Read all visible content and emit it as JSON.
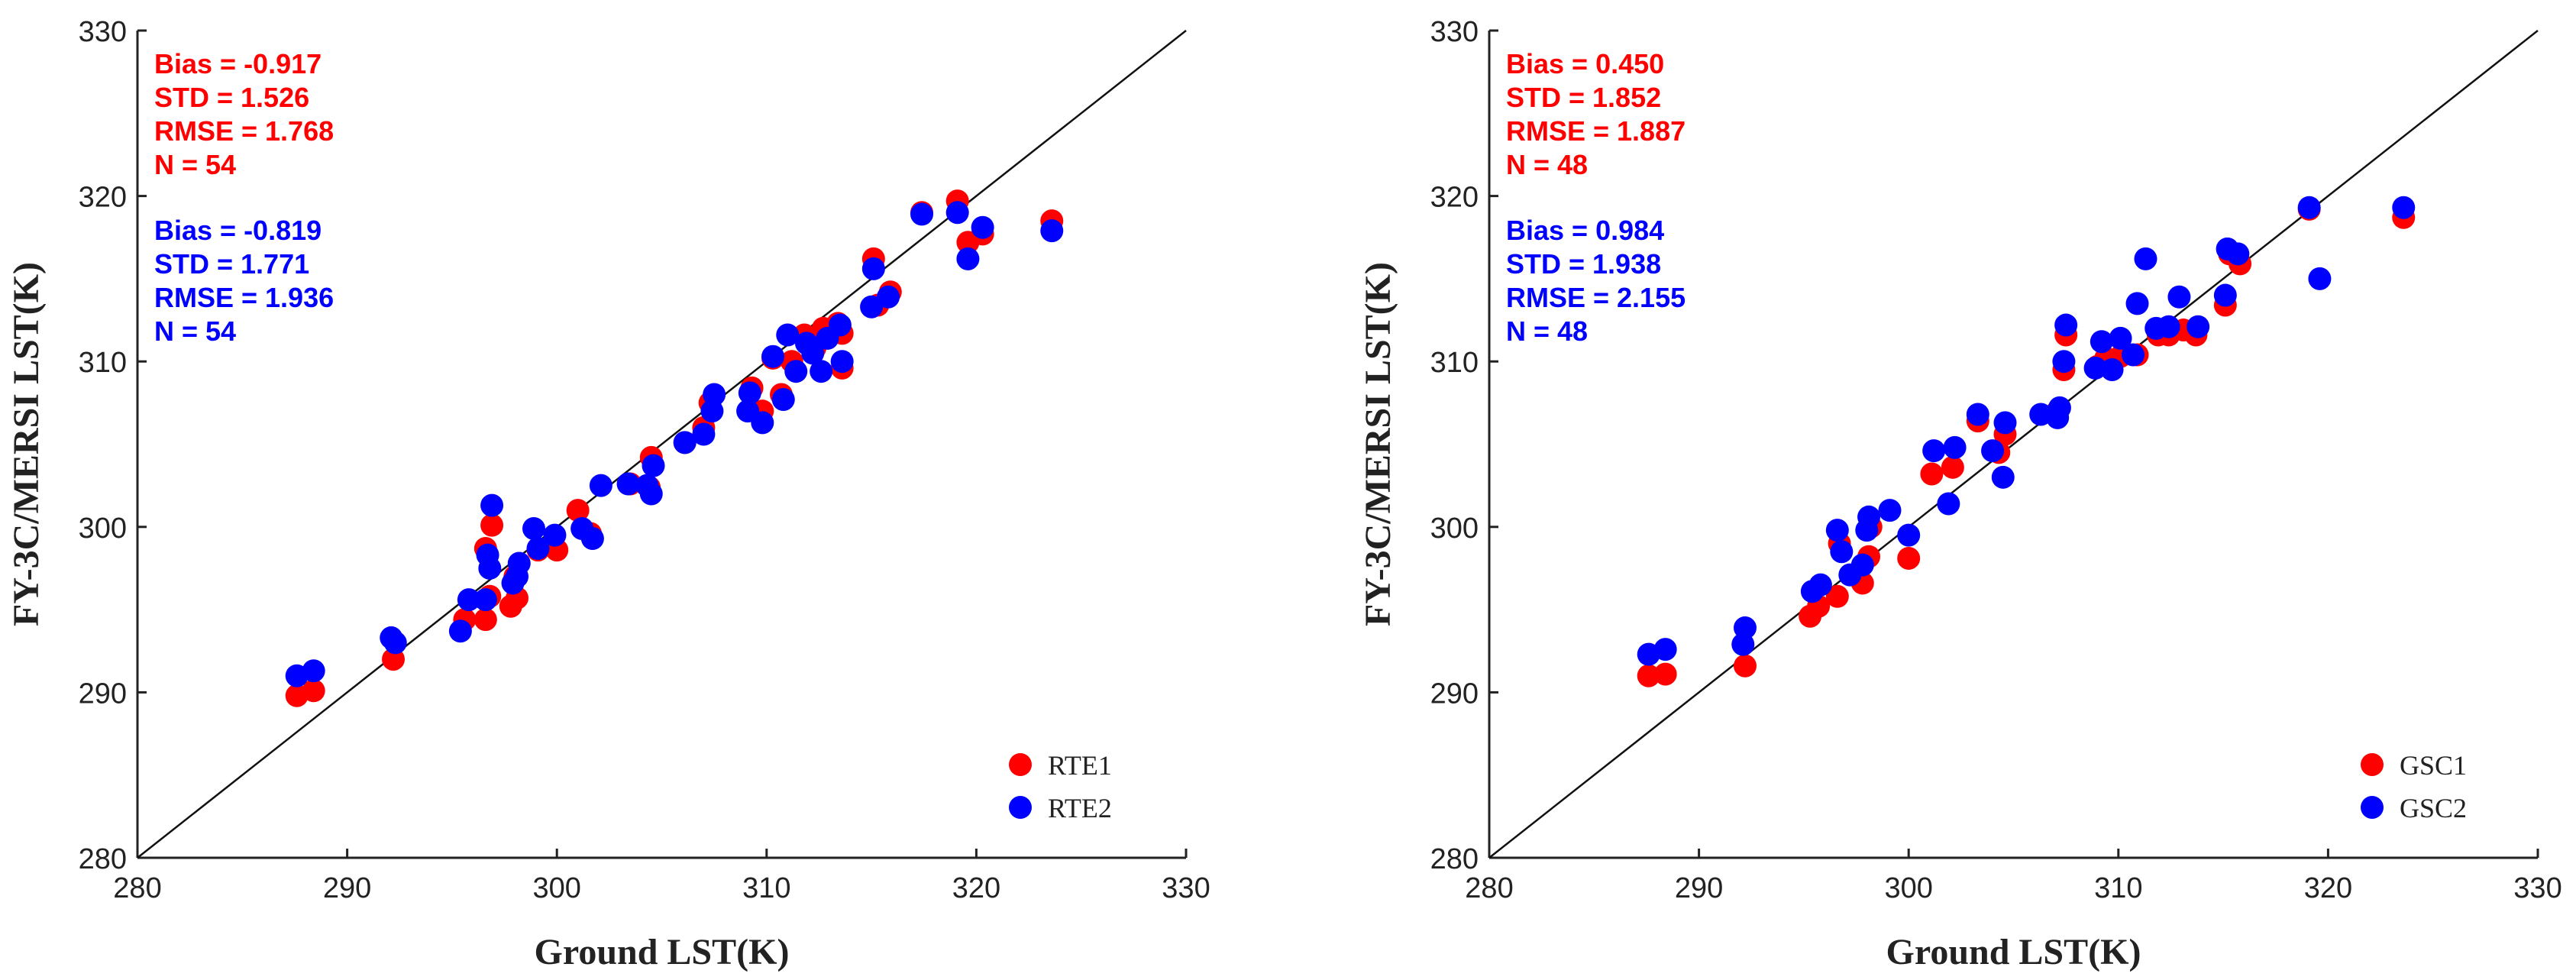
{
  "chart_data": [
    {
      "type": "scatter",
      "xlabel": "Ground LST(K)",
      "ylabel": "FY-3C/MERSI LST(K)",
      "xlim": [
        280,
        330
      ],
      "ylim": [
        280,
        330
      ],
      "ticks": [
        280,
        290,
        300,
        310,
        320,
        330
      ],
      "tick_labels": [
        "280",
        "290",
        "300",
        "310",
        "320",
        "330"
      ],
      "one_to_one_line": true,
      "legend_position": "bottom-right",
      "stats": [
        {
          "color": "#ff0000",
          "lines": [
            "Bias = -0.917",
            "STD = 1.526",
            "RMSE = 1.768",
            "N = 54"
          ]
        },
        {
          "color": "#0000ff",
          "lines": [
            "Bias = -0.819",
            "STD = 1.771",
            "RMSE = 1.936",
            "N = 54"
          ]
        }
      ],
      "series": [
        {
          "name": "RTE1",
          "color": "#ff0000",
          "points": [
            [
              287.6,
              289.8
            ],
            [
              288.4,
              290.1
            ],
            [
              292.2,
              292.0
            ],
            [
              295.6,
              294.4
            ],
            [
              296.6,
              294.4
            ],
            [
              296.6,
              298.7
            ],
            [
              296.9,
              300.1
            ],
            [
              296.8,
              295.8
            ],
            [
              297.8,
              295.2
            ],
            [
              298.1,
              295.7
            ],
            [
              298.0,
              297.0
            ],
            [
              299.1,
              298.6
            ],
            [
              300.0,
              298.6
            ],
            [
              301.0,
              301.0
            ],
            [
              301.6,
              299.6
            ],
            [
              303.5,
              302.6
            ],
            [
              304.4,
              302.4
            ],
            [
              304.5,
              304.2
            ],
            [
              306.1,
              305.1
            ],
            [
              307.0,
              306.0
            ],
            [
              307.3,
              307.5
            ],
            [
              309.3,
              308.4
            ],
            [
              309.8,
              307.0
            ],
            [
              310.3,
              310.2
            ],
            [
              310.7,
              308.0
            ],
            [
              311.2,
              310.0
            ],
            [
              311.8,
              311.6
            ],
            [
              312.3,
              310.8
            ],
            [
              312.7,
              312.0
            ],
            [
              313.4,
              312.3
            ],
            [
              313.6,
              311.7
            ],
            [
              313.6,
              309.6
            ],
            [
              315.1,
              316.2
            ],
            [
              315.3,
              313.4
            ],
            [
              315.9,
              314.2
            ],
            [
              317.4,
              319.0
            ],
            [
              319.1,
              319.7
            ],
            [
              319.6,
              317.2
            ],
            [
              320.3,
              317.7
            ],
            [
              323.6,
              318.5
            ]
          ]
        },
        {
          "name": "RTE2",
          "color": "#0000ff",
          "points": [
            [
              287.6,
              291.0
            ],
            [
              288.4,
              291.3
            ],
            [
              292.1,
              293.3
            ],
            [
              292.3,
              293.0
            ],
            [
              295.4,
              293.7
            ],
            [
              295.8,
              295.6
            ],
            [
              296.6,
              295.6
            ],
            [
              296.7,
              298.3
            ],
            [
              296.8,
              297.5
            ],
            [
              296.9,
              301.3
            ],
            [
              297.9,
              296.6
            ],
            [
              298.1,
              297.0
            ],
            [
              298.2,
              297.8
            ],
            [
              298.9,
              299.9
            ],
            [
              299.1,
              298.7
            ],
            [
              299.9,
              299.5
            ],
            [
              301.2,
              299.9
            ],
            [
              301.7,
              299.3
            ],
            [
              302.1,
              302.5
            ],
            [
              303.4,
              302.6
            ],
            [
              304.3,
              302.5
            ],
            [
              304.5,
              302.0
            ],
            [
              304.6,
              303.7
            ],
            [
              306.1,
              305.1
            ],
            [
              307.0,
              305.6
            ],
            [
              307.4,
              307.0
            ],
            [
              307.5,
              308.0
            ],
            [
              309.1,
              307.0
            ],
            [
              309.2,
              308.1
            ],
            [
              309.8,
              306.3
            ],
            [
              310.3,
              310.3
            ],
            [
              310.8,
              307.7
            ],
            [
              311.0,
              311.6
            ],
            [
              311.4,
              309.4
            ],
            [
              311.9,
              311.1
            ],
            [
              312.2,
              310.5
            ],
            [
              312.6,
              309.4
            ],
            [
              312.9,
              311.4
            ],
            [
              313.5,
              312.2
            ],
            [
              313.6,
              310.0
            ],
            [
              315.0,
              313.3
            ],
            [
              315.1,
              315.6
            ],
            [
              315.8,
              313.9
            ],
            [
              317.4,
              318.9
            ],
            [
              319.1,
              319.0
            ],
            [
              319.6,
              316.2
            ],
            [
              320.3,
              318.1
            ],
            [
              323.6,
              317.9
            ]
          ]
        }
      ]
    },
    {
      "type": "scatter",
      "xlabel": "Ground LST(K)",
      "ylabel": "FY-3C/MERSI LST(K)",
      "xlim": [
        280,
        330
      ],
      "ylim": [
        280,
        330
      ],
      "ticks": [
        280,
        290,
        300,
        310,
        320,
        330
      ],
      "tick_labels": [
        "280",
        "290",
        "300",
        "310",
        "320",
        "330"
      ],
      "one_to_one_line": true,
      "legend_position": "bottom-right",
      "stats": [
        {
          "color": "#ff0000",
          "lines": [
            "Bias = 0.450",
            "STD = 1.852",
            "RMSE = 1.887",
            "N = 48"
          ]
        },
        {
          "color": "#0000ff",
          "lines": [
            "Bias = 0.984",
            "STD = 1.938",
            "RMSE = 2.155",
            "N = 48"
          ]
        }
      ],
      "series": [
        {
          "name": "GSC1",
          "color": "#ff0000",
          "points": [
            [
              287.6,
              291.0
            ],
            [
              288.4,
              291.1
            ],
            [
              292.2,
              291.6
            ],
            [
              295.3,
              294.6
            ],
            [
              295.7,
              295.2
            ],
            [
              296.6,
              295.8
            ],
            [
              296.7,
              299.0
            ],
            [
              297.8,
              296.6
            ],
            [
              298.1,
              298.2
            ],
            [
              298.2,
              300.0
            ],
            [
              300.0,
              298.1
            ],
            [
              301.1,
              303.2
            ],
            [
              302.1,
              303.6
            ],
            [
              303.3,
              306.4
            ],
            [
              304.3,
              304.5
            ],
            [
              304.6,
              305.6
            ],
            [
              307.1,
              307.0
            ],
            [
              307.4,
              309.5
            ],
            [
              307.5,
              311.6
            ],
            [
              309.0,
              309.7
            ],
            [
              309.4,
              310.2
            ],
            [
              310.1,
              310.3
            ],
            [
              310.9,
              310.4
            ],
            [
              311.9,
              311.6
            ],
            [
              312.4,
              311.6
            ],
            [
              313.1,
              311.9
            ],
            [
              313.7,
              311.6
            ],
            [
              315.1,
              313.4
            ],
            [
              315.3,
              316.5
            ],
            [
              315.8,
              315.9
            ],
            [
              319.1,
              319.2
            ],
            [
              323.6,
              318.7
            ]
          ]
        },
        {
          "name": "GSC2",
          "color": "#0000ff",
          "points": [
            [
              287.6,
              292.3
            ],
            [
              288.4,
              292.6
            ],
            [
              292.1,
              292.9
            ],
            [
              292.2,
              293.9
            ],
            [
              295.4,
              296.1
            ],
            [
              295.8,
              296.5
            ],
            [
              296.6,
              299.8
            ],
            [
              296.8,
              298.5
            ],
            [
              297.2,
              297.1
            ],
            [
              297.8,
              297.7
            ],
            [
              298.0,
              299.8
            ],
            [
              298.1,
              300.6
            ],
            [
              299.1,
              301.0
            ],
            [
              300.0,
              299.5
            ],
            [
              301.2,
              304.6
            ],
            [
              301.9,
              301.4
            ],
            [
              302.2,
              304.8
            ],
            [
              303.3,
              306.8
            ],
            [
              304.0,
              304.6
            ],
            [
              304.5,
              303.0
            ],
            [
              304.6,
              306.3
            ],
            [
              306.3,
              306.8
            ],
            [
              307.1,
              306.6
            ],
            [
              307.2,
              307.2
            ],
            [
              307.4,
              310.0
            ],
            [
              307.5,
              312.2
            ],
            [
              308.9,
              309.6
            ],
            [
              309.2,
              311.2
            ],
            [
              309.7,
              309.5
            ],
            [
              310.1,
              311.4
            ],
            [
              310.7,
              310.4
            ],
            [
              310.9,
              313.5
            ],
            [
              311.3,
              316.2
            ],
            [
              311.8,
              312.0
            ],
            [
              312.4,
              312.1
            ],
            [
              312.9,
              313.9
            ],
            [
              313.8,
              312.1
            ],
            [
              315.1,
              314.0
            ],
            [
              315.2,
              316.8
            ],
            [
              315.7,
              316.5
            ],
            [
              319.1,
              319.3
            ],
            [
              319.6,
              315.0
            ],
            [
              323.6,
              319.3
            ]
          ]
        }
      ]
    }
  ]
}
